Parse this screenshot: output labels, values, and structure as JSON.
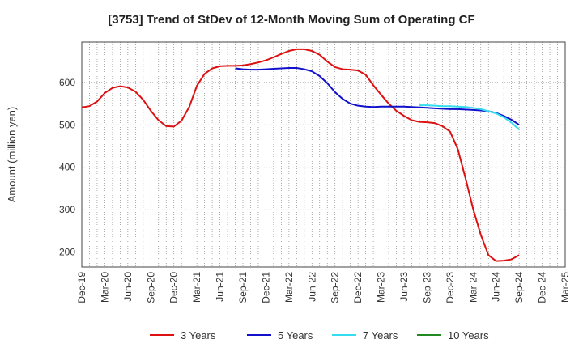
{
  "chart_data": {
    "type": "line",
    "title": "[3753]  Trend of StDev of 12-Month Moving Sum of Operating CF",
    "ylabel": "Amount (million yen)",
    "xlabel": "",
    "ylim": [
      165,
      695
    ],
    "yticks": [
      200,
      300,
      400,
      500,
      600
    ],
    "x_start": "Dec-19",
    "x_end": "Mar-25",
    "xticks": [
      "Dec-19",
      "Mar-20",
      "Jun-20",
      "Sep-20",
      "Dec-20",
      "Mar-21",
      "Jun-21",
      "Sep-21",
      "Dec-21",
      "Mar-22",
      "Jun-22",
      "Sep-22",
      "Dec-22",
      "Mar-23",
      "Jun-23",
      "Sep-23",
      "Dec-23",
      "Mar-24",
      "Jun-24",
      "Sep-24",
      "Dec-24",
      "Mar-25"
    ],
    "grid": true,
    "legend_position": "bottom",
    "series": [
      {
        "name": "3 Years",
        "color": "#dd1111",
        "x": [
          "Dec-19",
          "Jan-20",
          "Feb-20",
          "Mar-20",
          "Apr-20",
          "May-20",
          "Jun-20",
          "Jul-20",
          "Aug-20",
          "Sep-20",
          "Oct-20",
          "Nov-20",
          "Dec-20",
          "Jan-21",
          "Feb-21",
          "Mar-21",
          "Apr-21",
          "May-21",
          "Jun-21",
          "Jul-21",
          "Aug-21",
          "Sep-21",
          "Oct-21",
          "Nov-21",
          "Dec-21",
          "Jan-22",
          "Feb-22",
          "Mar-22",
          "Apr-22",
          "May-22",
          "Jun-22",
          "Jul-22",
          "Aug-22",
          "Sep-22",
          "Oct-22",
          "Nov-22",
          "Dec-22",
          "Jan-23",
          "Feb-23",
          "Mar-23",
          "Apr-23",
          "May-23",
          "Jun-23",
          "Jul-23",
          "Aug-23",
          "Sep-23",
          "Oct-23",
          "Nov-23",
          "Dec-23",
          "Jan-24",
          "Feb-24",
          "Mar-24",
          "Apr-24",
          "May-24",
          "Jun-24",
          "Jul-24",
          "Aug-24",
          "Sep-24"
        ],
        "values": [
          541,
          544,
          555,
          575,
          587,
          591,
          588,
          578,
          559,
          533,
          511,
          497,
          496,
          510,
          542,
          592,
          620,
          633,
          638,
          639,
          639,
          640,
          643,
          647,
          652,
          659,
          667,
          674,
          678,
          678,
          674,
          665,
          649,
          636,
          631,
          630,
          628,
          618,
          593,
          571,
          550,
          533,
          521,
          511,
          507,
          506,
          504,
          497,
          484,
          443,
          375,
          302,
          241,
          193,
          179,
          180,
          183,
          193
        ]
      },
      {
        "name": "5 Years",
        "color": "#1111cc",
        "x": [
          "Aug-21",
          "Sep-21",
          "Oct-21",
          "Nov-21",
          "Dec-21",
          "Jan-22",
          "Feb-22",
          "Mar-22",
          "Apr-22",
          "May-22",
          "Jun-22",
          "Jul-22",
          "Aug-22",
          "Sep-22",
          "Oct-22",
          "Nov-22",
          "Dec-22",
          "Jan-23",
          "Feb-23",
          "Mar-23",
          "Apr-23",
          "May-23",
          "Jun-23",
          "Jul-23",
          "Aug-23",
          "Sep-23",
          "Oct-23",
          "Nov-23",
          "Dec-23",
          "Jan-24",
          "Feb-24",
          "Mar-24",
          "Apr-24",
          "May-24",
          "Jun-24",
          "Jul-24",
          "Aug-24",
          "Sep-24"
        ],
        "values": [
          633,
          631,
          630,
          630,
          631,
          632,
          633,
          634,
          634,
          631,
          626,
          615,
          598,
          577,
          561,
          550,
          545,
          543,
          542,
          543,
          543,
          543,
          543,
          542,
          541,
          540,
          539,
          538,
          537,
          537,
          536,
          535,
          534,
          532,
          528,
          521,
          512,
          500
        ]
      },
      {
        "name": "7 Years",
        "color": "#33ddee",
        "x": [
          "Aug-23",
          "Sep-23",
          "Oct-23",
          "Nov-23",
          "Dec-23",
          "Jan-24",
          "Feb-24",
          "Mar-24",
          "Apr-24",
          "May-24",
          "Jun-24",
          "Jul-24",
          "Aug-24",
          "Sep-24"
        ],
        "values": [
          546,
          546,
          545,
          544,
          544,
          543,
          542,
          540,
          537,
          532,
          527,
          518,
          505,
          489
        ]
      },
      {
        "name": "10 Years",
        "color": "#228822",
        "x": [],
        "values": []
      }
    ]
  }
}
